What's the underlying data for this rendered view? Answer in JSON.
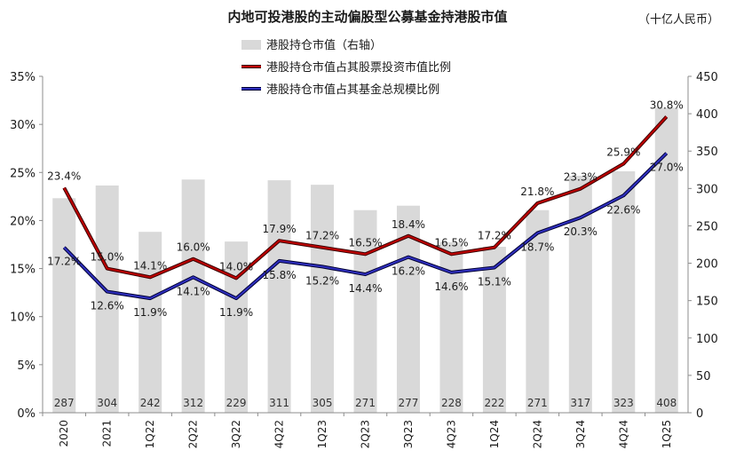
{
  "chart_data": {
    "type": "bar+line",
    "title": "内地可投港股的主动偏股型公募基金持港股市值",
    "unit_label": "（十亿人民币）",
    "categories": [
      "2020",
      "2021",
      "1Q22",
      "2Q22",
      "3Q22",
      "4Q22",
      "1Q23",
      "2Q23",
      "3Q23",
      "4Q23",
      "1Q24",
      "2Q24",
      "3Q24",
      "4Q24",
      "1Q25"
    ],
    "bar_series": {
      "name": "港股持仓市值（右轴）",
      "values": [
        287,
        304,
        242,
        312,
        229,
        311,
        305,
        271,
        277,
        228,
        222,
        271,
        317,
        323,
        408
      ],
      "labels": [
        "287",
        "304",
        "242",
        "312",
        "229",
        "311",
        "305",
        "271",
        "277",
        "228",
        "222",
        "271",
        "317",
        "323",
        "408"
      ]
    },
    "line_series": [
      {
        "name": "港股持仓市值占其股票投资市值比例",
        "values": [
          23.4,
          15.0,
          14.1,
          16.0,
          14.0,
          17.9,
          17.2,
          16.5,
          18.4,
          16.5,
          17.2,
          21.8,
          23.3,
          25.9,
          30.8
        ],
        "labels": [
          "23.4%",
          "15.0%",
          "14.1%",
          "16.0%",
          "14.0%",
          "17.9%",
          "17.2%",
          "16.5%",
          "18.4%",
          "16.5%",
          "17.2%",
          "21.8%",
          "23.3%",
          "25.9%",
          "30.8%"
        ]
      },
      {
        "name": "港股持仓市值占其基金总规模比例",
        "values": [
          17.2,
          12.6,
          11.9,
          14.1,
          11.9,
          15.8,
          15.2,
          14.4,
          16.2,
          14.6,
          15.1,
          18.7,
          20.3,
          22.6,
          27.0
        ],
        "labels": [
          "17.2%",
          "12.6%",
          "11.9%",
          "14.1%",
          "11.9%",
          "15.8%",
          "15.2%",
          "14.4%",
          "16.2%",
          "14.6%",
          "15.1%",
          "18.7%",
          "20.3%",
          "22.6%",
          "27.0%"
        ]
      }
    ],
    "left_axis": {
      "min": 0,
      "max": 35,
      "step": 5,
      "ticks": [
        "0%",
        "5%",
        "10%",
        "15%",
        "20%",
        "25%",
        "30%",
        "35%"
      ]
    },
    "right_axis": {
      "min": 0,
      "max": 450,
      "step": 50,
      "ticks": [
        "0",
        "50",
        "100",
        "150",
        "200",
        "250",
        "300",
        "350",
        "400",
        "450"
      ]
    },
    "grid": false,
    "legend_position": "top-center",
    "colors": {
      "bar": "#d9d9d9",
      "line1": "#c00000",
      "line2": "#1f1f9f"
    }
  }
}
